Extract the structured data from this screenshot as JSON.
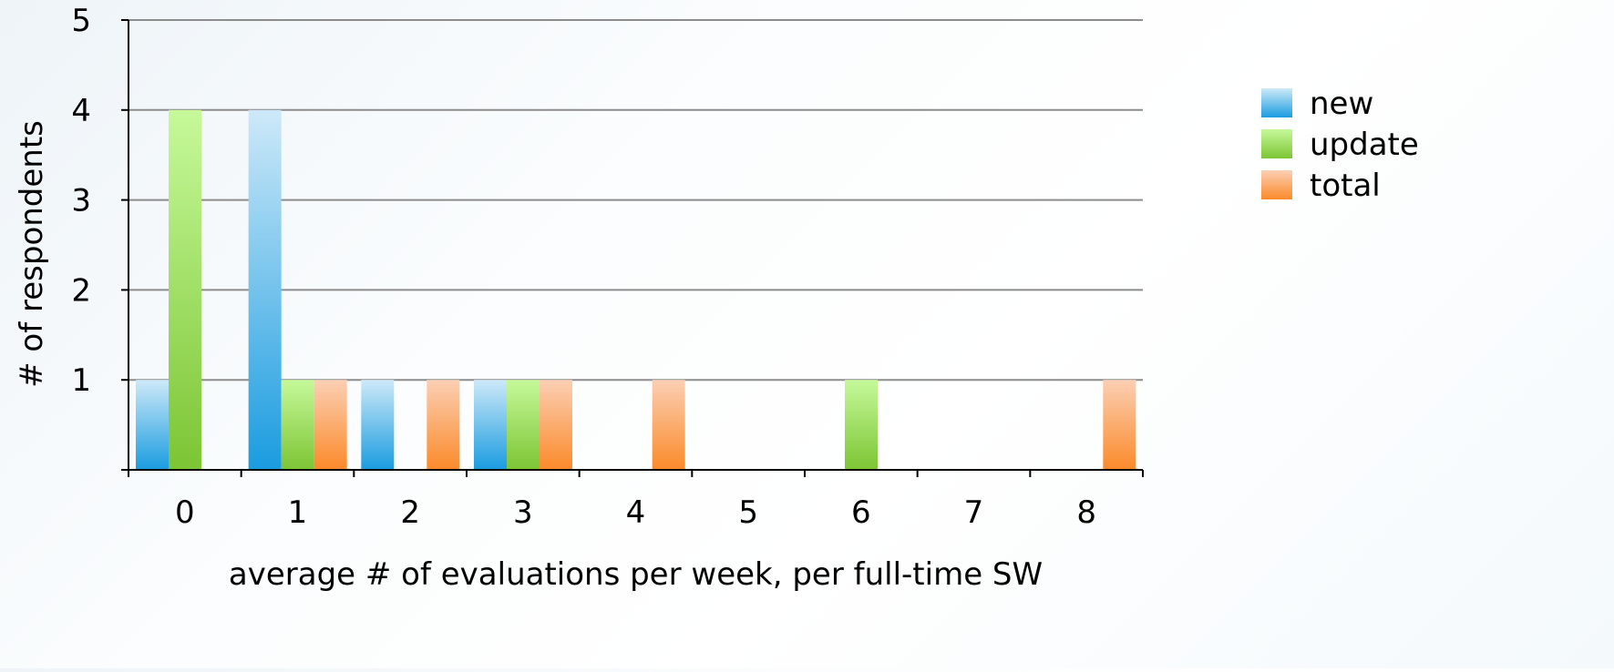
{
  "chart_data": {
    "type": "bar",
    "xlabel": "average # of evaluations per week, per full-time SW",
    "ylabel": "# of respondents",
    "categories": [
      "0",
      "1",
      "2",
      "3",
      "4",
      "5",
      "6",
      "7",
      "8"
    ],
    "series": [
      {
        "name": "new",
        "values": [
          1,
          4,
          1,
          1,
          0,
          0,
          0,
          0,
          0
        ]
      },
      {
        "name": "update",
        "values": [
          4,
          1,
          0,
          1,
          0,
          0,
          1,
          0,
          0
        ]
      },
      {
        "name": "total",
        "values": [
          0,
          1,
          1,
          1,
          1,
          0,
          0,
          0,
          1
        ]
      }
    ],
    "ylim": [
      0,
      5
    ],
    "yticks": [
      "1",
      "2",
      "3",
      "4",
      "5"
    ],
    "grid": true,
    "legend_position": "right",
    "colors": {
      "new": {
        "light": "#cde9f8",
        "dark": "#1a9ce0"
      },
      "update": {
        "light": "#c6f99a",
        "dark": "#7cc534"
      },
      "total": {
        "light": "#fbcfb4",
        "dark": "#fb8a2a"
      },
      "grid": "#8c8c8c",
      "axis": "#000000"
    }
  }
}
